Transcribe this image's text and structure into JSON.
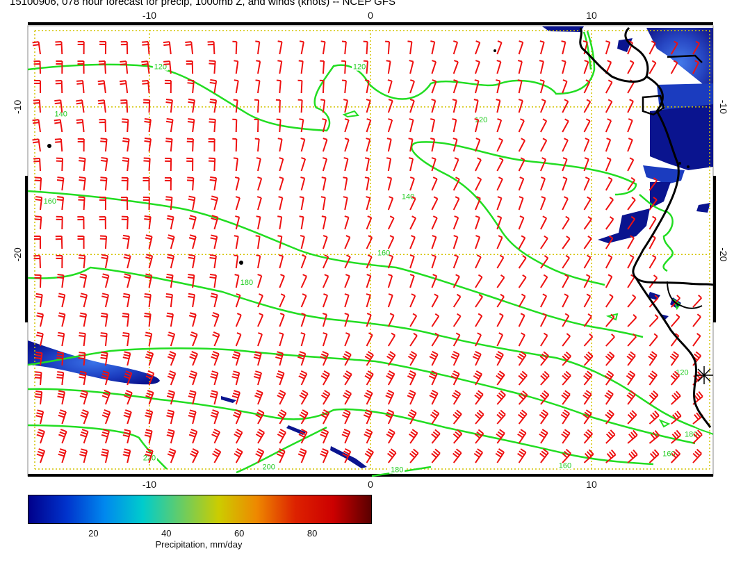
{
  "title": "15100906, 078 hour forecast for precip, 1000mb Z, and winds (knots) -- NCEP GFS",
  "map": {
    "lon_range": [
      -15.5,
      15.5
    ],
    "lat_range": [
      -4.5,
      -35
    ],
    "grid_lons": [
      -10,
      0,
      10
    ],
    "grid_lats": [
      -10,
      -20
    ],
    "x_tick_labels": [
      "-10",
      "0",
      "10"
    ],
    "y_tick_labels": [
      "-10",
      "-20"
    ],
    "wind_barbs": "red barbs across the domain, southeasterly trades",
    "contour_color": "#22cc22",
    "barb_color": "#ee1111",
    "grid_color": "#d4c400",
    "coast_color": "#000000",
    "height_contours": [
      {
        "label": "120",
        "label_lon": -9.5,
        "label_lat": -7.4
      },
      {
        "label": "120",
        "label_lon": -0.5,
        "label_lat": -7.4
      },
      {
        "label": "120",
        "label_lon": 5.0,
        "label_lat": -11.0
      },
      {
        "label": "140",
        "label_lon": -14.0,
        "label_lat": -10.6
      },
      {
        "label": "140",
        "label_lon": 1.7,
        "label_lat": -16.2
      },
      {
        "label": "160",
        "label_lon": -14.5,
        "label_lat": -16.5
      },
      {
        "label": "160",
        "label_lon": 0.6,
        "label_lat": -20.0
      },
      {
        "label": "180",
        "label_lon": -5.6,
        "label_lat": -22.0
      },
      {
        "label": "180",
        "label_lon": 1.2,
        "label_lat": -34.7
      },
      {
        "label": "200",
        "label_lon": -4.6,
        "label_lat": -34.5
      },
      {
        "label": "220",
        "label_lon": -10.0,
        "label_lat": -33.9
      },
      {
        "label": "160",
        "label_lon": 8.8,
        "label_lat": -34.4
      },
      {
        "label": "160",
        "label_lon": 13.5,
        "label_lat": -33.6
      },
      {
        "label": "180",
        "label_lon": 14.5,
        "label_lat": -32.3
      },
      {
        "label": "120",
        "label_lon": 14.1,
        "label_lat": -28.1
      }
    ]
  },
  "colorbar": {
    "label": "Precipitation, mm/day",
    "ticks": [
      "20",
      "40",
      "60",
      "80"
    ],
    "colors": [
      "#00008b",
      "#0033cc",
      "#0088ee",
      "#00cccc",
      "#66cc66",
      "#cccc00",
      "#ee8800",
      "#dd2200",
      "#cc0000",
      "#5a0000"
    ]
  }
}
